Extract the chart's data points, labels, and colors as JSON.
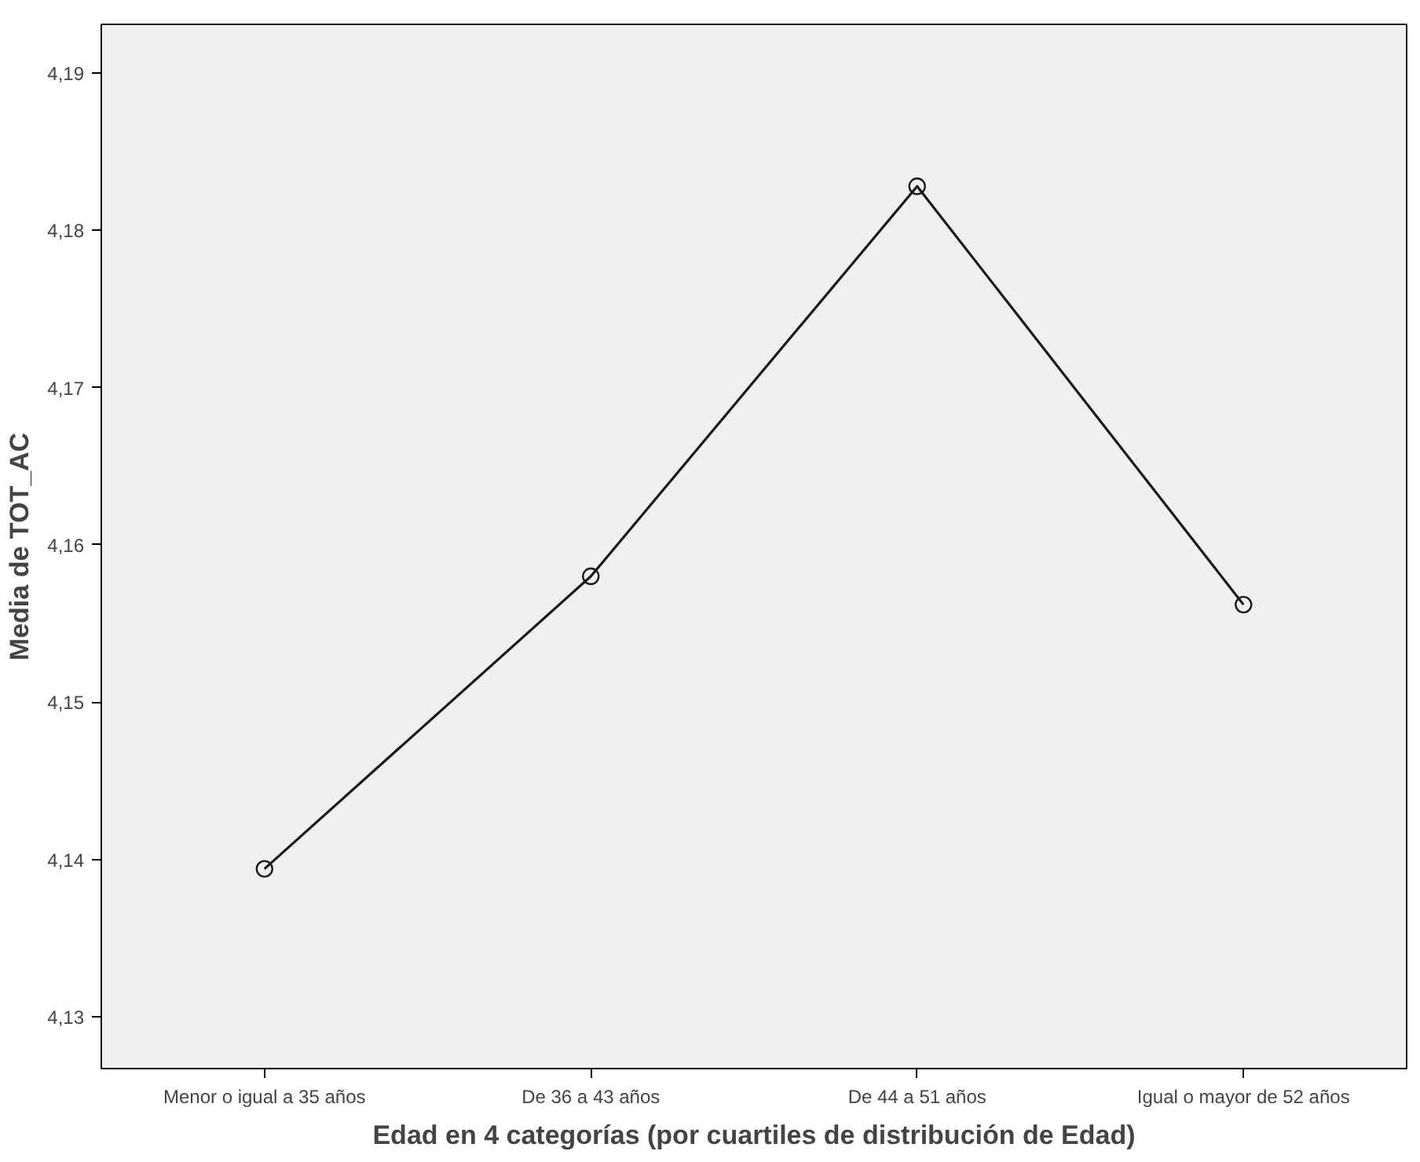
{
  "chart_data": {
    "type": "line",
    "xlabel": "Edad en 4 categorías (por cuartiles de distribución de Edad)",
    "ylabel": "Media de TOT_AC",
    "categories": [
      "Menor o igual a 35 años",
      "De 36 a 43 años",
      "De 44 a 51 años",
      "Igual o mayor de 52 años"
    ],
    "series": [
      {
        "color": "#1a1a1a",
        "values": [
          4.1394,
          4.158,
          4.1828,
          4.1562
        ]
      }
    ],
    "ylim": [
      4.1267,
      4.1931
    ],
    "yticks": [
      {
        "value": 4.13,
        "label": "4,13"
      },
      {
        "value": 4.14,
        "label": "4,14"
      },
      {
        "value": 4.15,
        "label": "4,15"
      },
      {
        "value": 4.16,
        "label": "4,16"
      },
      {
        "value": 4.17,
        "label": "4,17"
      },
      {
        "value": 4.18,
        "label": "4,18"
      },
      {
        "value": 4.19,
        "label": "4,19"
      }
    ],
    "grid": false,
    "marker": "circle",
    "line_style": "solid"
  }
}
